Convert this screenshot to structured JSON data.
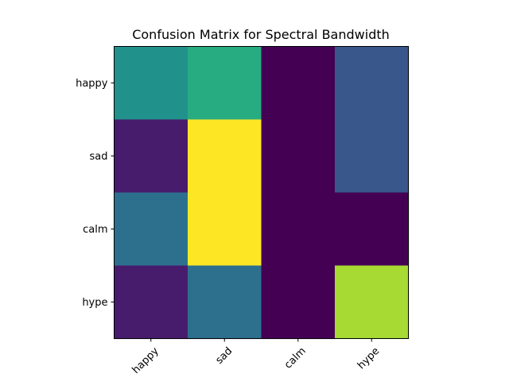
{
  "chart_data": {
    "type": "heatmap",
    "title": "Confusion Matrix for Spectral Bandwidth",
    "xlabel": "",
    "ylabel": "",
    "x_categories": [
      "happy",
      "sad",
      "calm",
      "hype"
    ],
    "y_categories": [
      "happy",
      "sad",
      "calm",
      "hype"
    ],
    "values": [
      [
        0.5,
        0.62,
        0.0,
        0.27
      ],
      [
        0.1,
        1.0,
        0.0,
        0.27
      ],
      [
        0.37,
        1.0,
        0.0,
        0.0
      ],
      [
        0.1,
        0.37,
        0.0,
        0.87
      ]
    ],
    "colormap": "viridis",
    "x_tick_rotation_deg": 45,
    "grid": false,
    "legend": "none"
  }
}
